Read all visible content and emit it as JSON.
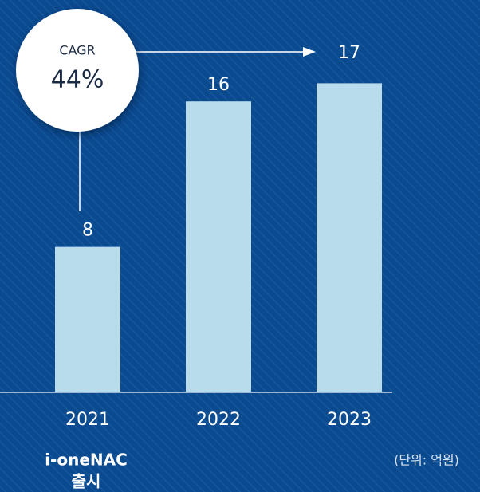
{
  "chart_data": {
    "type": "bar",
    "categories": [
      "2021",
      "2022",
      "2023"
    ],
    "values": [
      8,
      16,
      17
    ],
    "color": "#b9dcec",
    "annotation": {
      "title": "CAGR",
      "text": "44%"
    },
    "category_note": [
      "i-oneNAC",
      "출시"
    ],
    "unit_label": "(단위: 억원)"
  }
}
